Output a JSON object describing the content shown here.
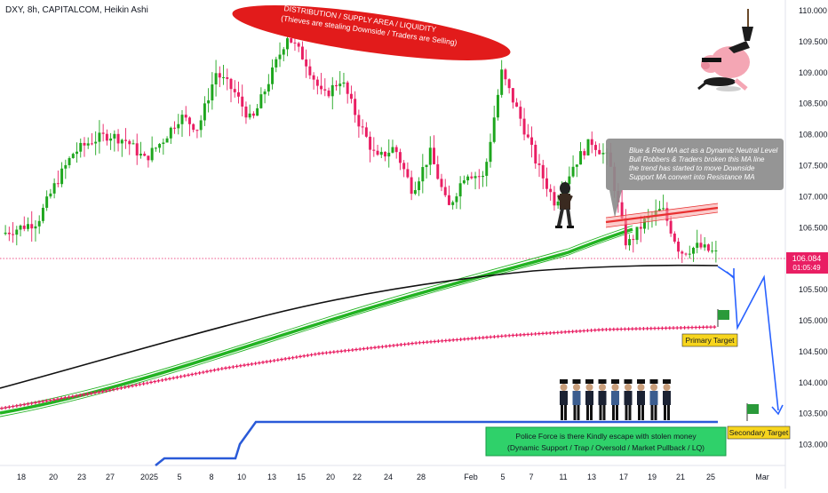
{
  "header": {
    "title": "DXY, 8h, CAPITALCOM, Heikin Ashi"
  },
  "price_badge": {
    "price": "106.084",
    "countdown": "01:05:49"
  },
  "annotations": {
    "supply_line1": "DISTRIBUTION / SUPPLY AREA / LIQUIDITY",
    "supply_line2": "(Thieves are stealing Downside / Traders are Selling)",
    "ma_note": [
      "Blue & Red MA act as a Dynamic Neutral Level",
      "Bull Robbers & Traders broken this MA line",
      "the trend has started to move Downside",
      "Support MA convert into Resistance MA"
    ],
    "police_line1": "Police Force is there Kindly escape with stolen money",
    "police_line2": "(Dynamic Support / Trap / Oversold / Market Pullback / LQ)",
    "primary_target": "Primary Target",
    "secondary_target": "Secondary Target"
  },
  "colors": {
    "bull": "#1ea61e",
    "bear": "#e91e63",
    "ma_green": "#22b322",
    "ma_black": "#111111",
    "ma_pink": "#e91e63",
    "support_blue": "#2a5ad8",
    "ellipse_red": "#e21b1b",
    "resistance_band": "#e83030",
    "note_bg": "#8c8c8c",
    "police_bg": "#2fd16a",
    "target_bg": "#f7d51d",
    "projection_blue": "#2962ff",
    "flag_green": "#2a9a3a"
  },
  "chart_data": {
    "type": "candlestick",
    "style": "Heikin Ashi",
    "symbol": "DXY",
    "timeframe": "8h",
    "source": "CAPITALCOM",
    "current_price": 106.084,
    "ylim": [
      102.8,
      110.1
    ],
    "y_ticks": [
      "110.000",
      "109.500",
      "109.000",
      "108.500",
      "108.000",
      "107.500",
      "107.000",
      "106.500",
      "106.000",
      "105.500",
      "105.000",
      "104.500",
      "104.000",
      "103.500",
      "103.000"
    ],
    "x_ticks": [
      "18",
      "20",
      "23",
      "27",
      "2025",
      "5",
      "8",
      "10",
      "13",
      "15",
      "20",
      "22",
      "24",
      "28",
      "Feb",
      "5",
      "7",
      "11",
      "13",
      "17",
      "19",
      "21",
      "25",
      "Mar"
    ],
    "candle_path_close": [
      106.4,
      106.5,
      106.6,
      107.2,
      107.7,
      107.9,
      108.0,
      107.9,
      107.6,
      107.9,
      108.3,
      108.1,
      109.0,
      108.7,
      108.2,
      108.9,
      109.6,
      109.2,
      108.6,
      108.9,
      108.2,
      107.6,
      107.8,
      107.1,
      107.7,
      106.8,
      107.4,
      107.3,
      109.0,
      108.3,
      107.5,
      106.9,
      107.5,
      107.9,
      107.6,
      106.2,
      106.6,
      106.8,
      106.1,
      106.2,
      106.08
    ],
    "series": [
      {
        "name": "Heikin Ashi candles"
      },
      {
        "name": "Green MA band"
      },
      {
        "name": "Black MA"
      },
      {
        "name": "Pink MA"
      },
      {
        "name": "Blue support line"
      }
    ],
    "ma_green": [
      {
        "x": "2024-12-16",
        "y": 103.55
      },
      {
        "x": "2024-12-27",
        "y": 104.15
      },
      {
        "x": "2025-01-06",
        "y": 104.75
      },
      {
        "x": "2025-01-15",
        "y": 105.25
      },
      {
        "x": "2025-01-23",
        "y": 105.65
      },
      {
        "x": "2025-02-03",
        "y": 106.05
      },
      {
        "x": "2025-02-14",
        "y": 106.55
      },
      {
        "x": "2025-02-19",
        "y": 106.7
      }
    ],
    "ma_black": [
      {
        "x": "2024-12-16",
        "y": 103.97
      },
      {
        "x": "2024-12-27",
        "y": 104.4
      },
      {
        "x": "2025-01-06",
        "y": 104.95
      },
      {
        "x": "2025-01-15",
        "y": 105.4
      },
      {
        "x": "2025-01-23",
        "y": 105.65
      },
      {
        "x": "2025-02-03",
        "y": 105.85
      },
      {
        "x": "2025-02-14",
        "y": 105.98
      },
      {
        "x": "2025-02-26",
        "y": 106.0
      }
    ],
    "ma_pink": [
      {
        "x": "2024-12-16",
        "y": 103.67
      },
      {
        "x": "2024-12-27",
        "y": 103.9
      },
      {
        "x": "2025-01-06",
        "y": 104.15
      },
      {
        "x": "2025-01-15",
        "y": 104.42
      },
      {
        "x": "2025-01-23",
        "y": 104.62
      },
      {
        "x": "2025-02-03",
        "y": 104.8
      },
      {
        "x": "2025-02-14",
        "y": 104.95
      },
      {
        "x": "2025-02-26",
        "y": 105.03
      }
    ],
    "support_blue": [
      {
        "x": "2025-01-02",
        "y": 102.85
      },
      {
        "x": "2025-01-03",
        "y": 103.05
      },
      {
        "x": "2025-01-09",
        "y": 103.05
      },
      {
        "x": "2025-01-10",
        "y": 103.5
      },
      {
        "x": "2025-02-26",
        "y": 103.5
      }
    ],
    "resistance_band": {
      "from": 106.6,
      "to": 106.85
    },
    "projection": [
      105.9,
      105.7,
      104.9,
      105.7,
      103.6
    ],
    "primary_target": 104.95,
    "secondary_target": 103.65
  }
}
